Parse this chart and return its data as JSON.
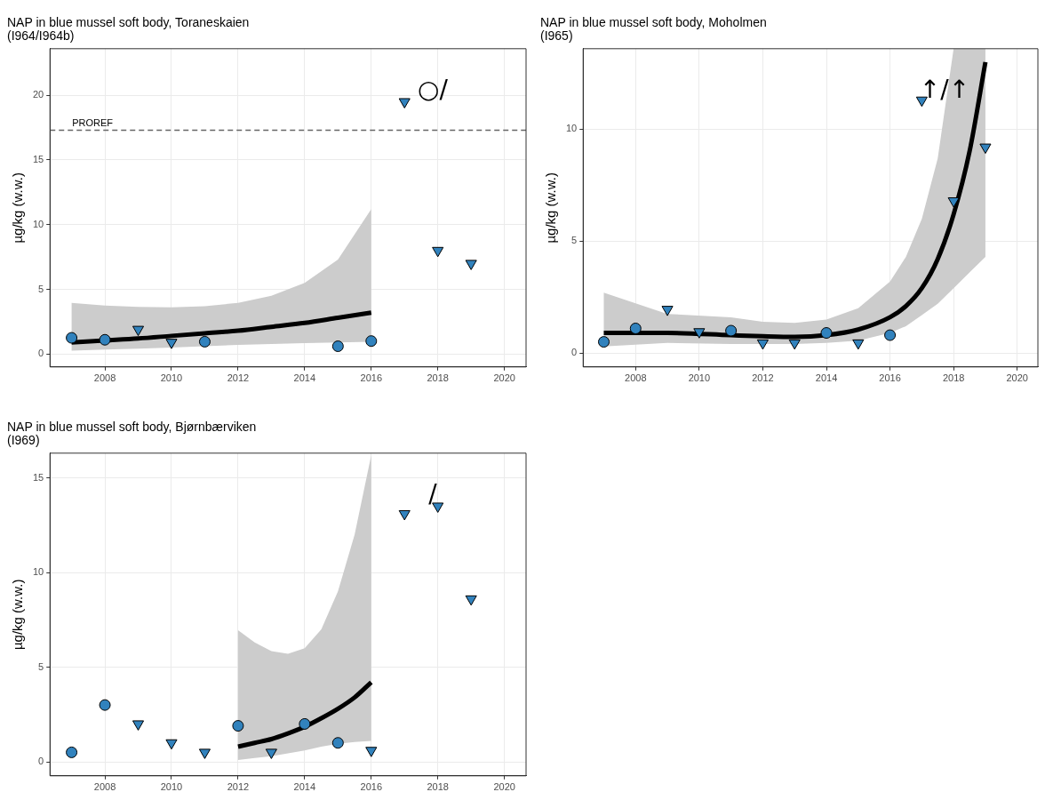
{
  "chart_data": [
    {
      "type": "scatter",
      "title": "NAP in blue mussel soft body, Toraneskaien\n(I964/I964b)",
      "ylabel": "µg/kg (w.w.)",
      "xlim": [
        2006.35,
        2020.65
      ],
      "xticks": [
        2008,
        2010,
        2012,
        2014,
        2016,
        2018,
        2020
      ],
      "ylim": [
        -1.0,
        23.6
      ],
      "yticks": [
        0,
        5,
        10,
        15,
        20
      ],
      "grid": true,
      "series": [
        {
          "type": "line",
          "color": "#000000",
          "line_style": "solid",
          "x": [
            2007,
            2008,
            2009,
            2010,
            2011,
            2012,
            2013,
            2014,
            2015,
            2016
          ],
          "values": [
            0.9,
            1.05,
            1.2,
            1.4,
            1.6,
            1.8,
            2.1,
            2.4,
            2.8,
            3.2
          ],
          "lower": [
            0.25,
            0.35,
            0.42,
            0.5,
            0.6,
            0.7,
            0.78,
            0.85,
            0.9,
            0.95
          ],
          "upper": [
            3.95,
            3.75,
            3.65,
            3.6,
            3.7,
            3.95,
            4.5,
            5.5,
            7.3,
            11.2
          ]
        },
        {
          "color": "#3182bd",
          "marker": "circle",
          "x": [
            2007,
            2008,
            2011,
            2015,
            2016
          ],
          "values": [
            1.25,
            1.1,
            0.95,
            0.6,
            1.0
          ]
        },
        {
          "color": "#3182bd",
          "marker": "triangle",
          "x": [
            2009,
            2010,
            2017,
            2018,
            2019
          ],
          "values": [
            1.9,
            0.9,
            19.5,
            8.0,
            7.0
          ]
        }
      ],
      "ref_lines": [
        {
          "axis": "y",
          "value": 17.3,
          "label": "PROREF",
          "color": "#666666",
          "line_style": "dashed"
        }
      ],
      "annotations": [
        "○/"
      ]
    },
    {
      "type": "scatter",
      "title": "NAP in blue mussel soft body, Moholmen\n(I965)",
      "ylabel": "µg/kg (w.w.)",
      "xlim": [
        2006.35,
        2020.65
      ],
      "xticks": [
        2008,
        2010,
        2012,
        2014,
        2016,
        2018,
        2020
      ],
      "ylim": [
        -0.62,
        13.6
      ],
      "yticks": [
        0,
        5,
        10
      ],
      "grid": true,
      "series": [
        {
          "type": "line",
          "color": "#000000",
          "line_style": "solid",
          "x": [
            2007,
            2009,
            2011,
            2012,
            2013,
            2014,
            2015,
            2016,
            2016.5,
            2017,
            2017.5,
            2018,
            2018.5,
            2019
          ],
          "values": [
            0.9,
            0.9,
            0.8,
            0.75,
            0.72,
            0.8,
            1.05,
            1.6,
            2.1,
            2.9,
            4.2,
            6.2,
            9.0,
            13.0
          ],
          "lower": [
            0.3,
            0.45,
            0.4,
            0.4,
            0.4,
            0.45,
            0.55,
            0.9,
            1.2,
            1.7,
            2.2,
            2.9,
            3.6,
            4.3
          ],
          "upper": [
            2.7,
            1.75,
            1.6,
            1.4,
            1.35,
            1.5,
            2.0,
            3.2,
            4.3,
            6.0,
            8.7,
            13.6,
            13.6,
            13.6
          ]
        },
        {
          "color": "#3182bd",
          "marker": "circle",
          "x": [
            2007,
            2008,
            2011,
            2014,
            2016
          ],
          "values": [
            0.5,
            1.1,
            1.0,
            0.9,
            0.8
          ]
        },
        {
          "color": "#3182bd",
          "marker": "triangle",
          "x": [
            2009,
            2010,
            2012,
            2013,
            2015,
            2017,
            2018,
            2019
          ],
          "values": [
            1.95,
            0.95,
            0.45,
            0.45,
            0.45,
            11.3,
            6.8,
            9.2
          ]
        }
      ],
      "annotations": [
        "↑/↑"
      ]
    },
    {
      "type": "scatter",
      "title": "NAP in blue mussel soft body, Bjørnbærviken\n(I969)",
      "ylabel": "µg/kg (w.w.)",
      "xlim": [
        2006.35,
        2020.65
      ],
      "xticks": [
        2008,
        2010,
        2012,
        2014,
        2016,
        2018,
        2020
      ],
      "ylim": [
        -0.74,
        16.3
      ],
      "yticks": [
        0,
        5,
        10,
        15
      ],
      "grid": true,
      "series": [
        {
          "type": "line",
          "color": "#000000",
          "line_style": "solid",
          "x": [
            2012,
            2012.5,
            2013,
            2013.5,
            2014,
            2014.5,
            2015,
            2015.5,
            2016
          ],
          "values": [
            0.8,
            1.0,
            1.2,
            1.5,
            1.85,
            2.3,
            2.8,
            3.4,
            4.2
          ],
          "lower": [
            0.1,
            0.2,
            0.3,
            0.45,
            0.6,
            0.8,
            0.95,
            1.05,
            1.1
          ],
          "upper": [
            6.95,
            6.3,
            5.85,
            5.7,
            6.0,
            7.0,
            9.0,
            12.0,
            16.2
          ]
        },
        {
          "color": "#3182bd",
          "marker": "circle",
          "x": [
            2007,
            2008,
            2012,
            2014,
            2015
          ],
          "values": [
            0.5,
            3.0,
            1.9,
            2.0,
            1.0
          ]
        },
        {
          "color": "#3182bd",
          "marker": "triangle",
          "x": [
            2009,
            2010,
            2011,
            2013,
            2016,
            2017,
            2018,
            2019
          ],
          "values": [
            2.0,
            1.0,
            0.5,
            0.5,
            0.6,
            13.1,
            13.5,
            8.6
          ]
        }
      ],
      "annotations": [
        "/"
      ]
    }
  ]
}
